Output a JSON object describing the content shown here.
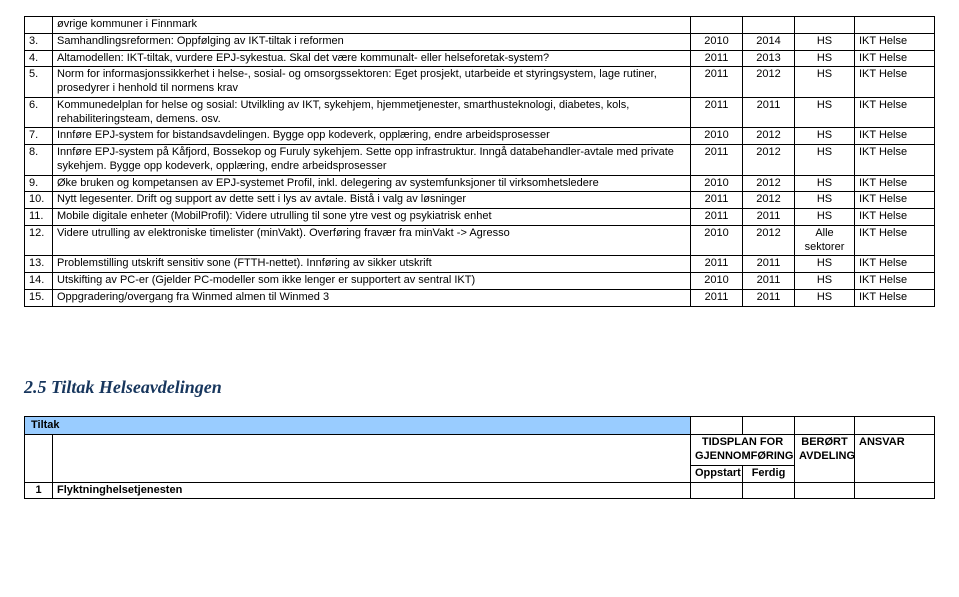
{
  "colors": {
    "border": "#000000",
    "text": "#000000",
    "section_title": "#17365d",
    "tiltak_bg": "#99ccff",
    "background": "#ffffff"
  },
  "table1": {
    "rows": [
      {
        "num": "",
        "desc": "øvrige kommuner i Finnmark",
        "y1": "",
        "y2": "",
        "dept": "",
        "resp": ""
      },
      {
        "num": "3.",
        "desc": "Samhandlingsreformen: Oppfølging av IKT-tiltak i reformen",
        "y1": "2010",
        "y2": "2014",
        "dept": "HS",
        "resp": "IKT Helse"
      },
      {
        "num": "4.",
        "desc": "Altamodellen: IKT-tiltak, vurdere EPJ-sykestua. Skal det være kommunalt- eller helseforetak-system?",
        "y1": "2011",
        "y2": "2013",
        "dept": "HS",
        "resp": "IKT Helse"
      },
      {
        "num": "5.",
        "desc": "Norm for informasjonssikkerhet i helse-, sosial- og omsorgssektoren: Eget prosjekt, utarbeide et styringsystem, lage rutiner, prosedyrer i henhold til normens krav",
        "y1": "2011",
        "y2": "2012",
        "dept": "HS",
        "resp": "IKT Helse"
      },
      {
        "num": "6.",
        "desc": "Kommunedelplan for helse og sosial: Utvilkling av IKT, sykehjem, hjemmetjenester, smarthusteknologi, diabetes, kols, rehabiliteringsteam, demens. osv.",
        "y1": "2011",
        "y2": "2011",
        "dept": "HS",
        "resp": "IKT Helse"
      },
      {
        "num": "7.",
        "desc": "Innføre EPJ-system for bistandsavdelingen. Bygge opp kodeverk, opplæring, endre arbeidsprosesser",
        "y1": "2010",
        "y2": "2012",
        "dept": "HS",
        "resp": "IKT Helse"
      },
      {
        "num": "8.",
        "desc": "Innføre EPJ-system på Kåfjord, Bossekop og Furuly sykehjem. Sette opp infrastruktur. Inngå databehandler-avtale med private sykehjem. Bygge opp kodeverk, opplæring, endre arbeidsprosesser",
        "y1": "2011",
        "y2": "2012",
        "dept": "HS",
        "resp": "IKT Helse"
      },
      {
        "num": "9.",
        "desc": "Øke bruken og kompetansen av EPJ-systemet Profil, inkl. delegering av systemfunksjoner til virksomhetsledere",
        "y1": "2010",
        "y2": "2012",
        "dept": "HS",
        "resp": "IKT Helse"
      },
      {
        "num": "10.",
        "desc": "Nytt legesenter. Drift og support av dette sett i lys av avtale. Bistå i valg av løsninger",
        "y1": "2011",
        "y2": "2012",
        "dept": "HS",
        "resp": "IKT Helse"
      },
      {
        "num": "11.",
        "desc": "Mobile digitale enheter (MobilProfil): Videre utrulling til sone ytre vest og psykiatrisk enhet",
        "y1": "2011",
        "y2": "2011",
        "dept": "HS",
        "resp": "IKT Helse"
      },
      {
        "num": "12.",
        "desc": "Videre utrulling av elektroniske timelister (minVakt). Overføring fravær fra minVakt -> Agresso",
        "y1": "2010",
        "y2": "2012",
        "dept": "Alle sektorer",
        "resp": "IKT Helse"
      },
      {
        "num": "13.",
        "desc": "Problemstilling utskrift sensitiv sone (FTTH-nettet). Innføring av sikker utskrift",
        "y1": "2011",
        "y2": "2011",
        "dept": "HS",
        "resp": "IKT Helse"
      },
      {
        "num": "14.",
        "desc": "Utskifting av PC-er (Gjelder PC-modeller som ikke lenger er supportert av sentral IKT)",
        "y1": "2010",
        "y2": "2011",
        "dept": "HS",
        "resp": "IKT Helse"
      },
      {
        "num": "15.",
        "desc": "Oppgradering/overgang fra Winmed almen til Winmed 3",
        "y1": "2011",
        "y2": "2011",
        "dept": "HS",
        "resp": "IKT Helse"
      }
    ]
  },
  "section2": {
    "title": "2.5  Tiltak Helseavdelingen",
    "tiltak_label": "Tiltak",
    "header": {
      "tidsplan": "TIDSPLAN FOR GJENNOMFØRING",
      "berort": "BERØRT AVDELING",
      "ansvar": "ANSVAR",
      "oppstart": "Oppstart",
      "ferdig": "Ferdig"
    },
    "rows": [
      {
        "num": "1",
        "desc": "Flyktninghelsetjenesten",
        "y1": "",
        "y2": "",
        "dept": "",
        "resp": ""
      }
    ]
  }
}
